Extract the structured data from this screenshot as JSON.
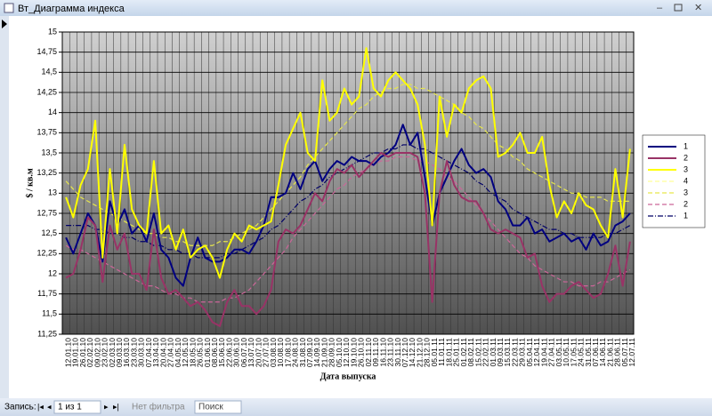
{
  "window": {
    "title": "Вт_Диаграмма индекса",
    "nav": {
      "label": "Запись:",
      "position": "1 из 1",
      "filter": "Нет фильтра",
      "search": "Поиск"
    }
  },
  "chart_data": {
    "type": "line",
    "y_label": "$ / кв.м",
    "x_label": "Дата выпуска",
    "grid": true,
    "ylim": [
      11.25,
      15
    ],
    "yticks": [
      {
        "value": 11.25,
        "label": "11,25"
      },
      {
        "value": 11.5,
        "label": "11,5"
      },
      {
        "value": 11.75,
        "label": "11,75"
      },
      12,
      {
        "value": 12.25,
        "label": "12,25"
      },
      {
        "value": 12.5,
        "label": "12,5"
      },
      {
        "value": 12.75,
        "label": "12,75"
      },
      13,
      {
        "value": 13.25,
        "label": "13,25"
      },
      {
        "value": 13.5,
        "label": "13,5"
      },
      {
        "value": 13.75,
        "label": "13,75"
      },
      14,
      {
        "value": 14.25,
        "label": "14,25"
      },
      {
        "value": 14.5,
        "label": "14,5"
      },
      {
        "value": 14.75,
        "label": "14,75"
      },
      15
    ],
    "categories": [
      "12.01.10",
      "19.01.10",
      "26.01.10",
      "02.02.10",
      "09.02.10",
      "23.02.10",
      "02.03.10",
      "09.03.10",
      "16.03.10",
      "23.03.10",
      "30.03.10",
      "07.04.10",
      "13.04.10",
      "20.04.10",
      "27.04.10",
      "04.05.10",
      "12.05.10",
      "18.05.10",
      "26.05.10",
      "01.06.10",
      "08.06.10",
      "15.06.10",
      "22.06.10",
      "30.06.10",
      "06.07.10",
      "13.07.10",
      "20.07.10",
      "27.07.10",
      "03.08.10",
      "10.08.10",
      "17.08.10",
      "24.08.10",
      "31.08.10",
      "07.09.10",
      "14.09.10",
      "21.09.10",
      "28.09.10",
      "05.10.10",
      "12.10.10",
      "19.10.10",
      "26.10.10",
      "02.11.10",
      "09.11.10",
      "16.11.10",
      "23.11.10",
      "30.11.10",
      "07.12.10",
      "14.12.10",
      "21.12.10",
      "28.12.10",
      "05.01.11",
      "11.01.11",
      "18.01.11",
      "25.01.11",
      "01.02.11",
      "08.02.11",
      "15.02.11",
      "22.02.11",
      "01.03.11",
      "09.03.11",
      "15.03.11",
      "22.03.11",
      "29.03.11",
      "05.04.11",
      "12.04.11",
      "19.04.11",
      "27.04.11",
      "03.05.11",
      "10.05.11",
      "17.05.11",
      "24.05.11",
      "31.05.11",
      "07.06.11",
      "14.06.11",
      "21.06.11",
      "28.06.11",
      "05.07.11",
      "12.07.11"
    ],
    "series": [
      {
        "name": "1",
        "color": "#000080",
        "style": "solid",
        "values": [
          12.45,
          12.25,
          12.5,
          12.75,
          12.6,
          12.15,
          12.9,
          12.6,
          12.8,
          12.5,
          12.6,
          12.4,
          12.75,
          12.3,
          12.2,
          11.95,
          11.85,
          12.2,
          12.45,
          12.2,
          12.15,
          12.15,
          12.2,
          12.3,
          12.3,
          12.25,
          12.4,
          12.6,
          12.95,
          12.95,
          13.0,
          13.25,
          13.05,
          13.3,
          13.4,
          13.15,
          13.3,
          13.4,
          13.35,
          13.45,
          13.4,
          13.4,
          13.35,
          13.45,
          13.5,
          13.6,
          13.85,
          13.6,
          13.75,
          13.2,
          12.6,
          13.0,
          13.2,
          13.4,
          13.55,
          13.35,
          13.25,
          13.3,
          13.2,
          12.9,
          12.8,
          12.6,
          12.6,
          12.7,
          12.5,
          12.55,
          12.4,
          12.45,
          12.5,
          12.4,
          12.45,
          12.3,
          12.5,
          12.35,
          12.4,
          12.6,
          12.65,
          12.75
        ]
      },
      {
        "name": "2",
        "color": "#993366",
        "style": "solid",
        "values": [
          11.95,
          12.0,
          12.3,
          12.7,
          12.6,
          11.9,
          12.6,
          12.3,
          12.5,
          12.0,
          12.0,
          11.8,
          12.55,
          11.95,
          11.75,
          11.8,
          11.7,
          11.6,
          11.65,
          11.55,
          11.4,
          11.35,
          11.65,
          11.8,
          11.6,
          11.6,
          11.5,
          11.6,
          11.8,
          12.4,
          12.55,
          12.5,
          12.6,
          12.8,
          13.0,
          12.9,
          13.15,
          13.3,
          13.25,
          13.35,
          13.2,
          13.3,
          13.4,
          13.5,
          13.45,
          13.5,
          13.5,
          13.5,
          13.45,
          13.0,
          11.65,
          13.0,
          13.4,
          13.1,
          12.95,
          12.9,
          12.9,
          12.75,
          12.55,
          12.5,
          12.55,
          12.5,
          12.45,
          12.2,
          12.25,
          11.85,
          11.65,
          11.75,
          11.75,
          11.85,
          11.9,
          11.8,
          11.7,
          11.75,
          12.0,
          12.35,
          11.85,
          12.4
        ]
      },
      {
        "name": "3",
        "color": "#ffff00",
        "style": "solid",
        "values": [
          12.95,
          12.7,
          13.1,
          13.3,
          13.9,
          12.2,
          13.3,
          12.5,
          13.6,
          12.8,
          12.6,
          12.5,
          13.4,
          12.5,
          12.6,
          12.3,
          12.55,
          12.2,
          12.3,
          12.35,
          12.2,
          11.95,
          12.3,
          12.5,
          12.4,
          12.6,
          12.55,
          12.6,
          12.65,
          13.1,
          13.6,
          13.8,
          14.0,
          13.5,
          13.4,
          14.4,
          13.9,
          14.0,
          14.3,
          14.1,
          14.2,
          14.8,
          14.3,
          14.2,
          14.4,
          14.5,
          14.4,
          14.3,
          14.1,
          13.6,
          12.6,
          14.2,
          13.7,
          14.1,
          14.0,
          14.3,
          14.4,
          14.45,
          14.3,
          13.45,
          13.5,
          13.6,
          13.75,
          13.5,
          13.5,
          13.7,
          13.1,
          12.7,
          12.9,
          12.75,
          13.0,
          12.85,
          12.8,
          12.6,
          12.45,
          13.3,
          12.7,
          13.55
        ]
      },
      {
        "name": "4",
        "color": "#ffff99",
        "style": "dash"
      },
      {
        "name": "3",
        "color": "#e6e64c",
        "style": "dash",
        "values": [
          13.15,
          13.05,
          12.95,
          12.9,
          12.85,
          12.8,
          12.75,
          12.7,
          12.65,
          12.6,
          12.55,
          12.5,
          12.5,
          12.45,
          12.45,
          12.4,
          12.4,
          12.35,
          12.35,
          12.35,
          12.35,
          12.4,
          12.4,
          12.45,
          12.5,
          12.55,
          12.6,
          12.7,
          12.8,
          12.9,
          13.0,
          13.1,
          13.2,
          13.35,
          13.45,
          13.55,
          13.65,
          13.75,
          13.85,
          13.95,
          14.05,
          14.1,
          14.2,
          14.25,
          14.3,
          14.3,
          14.35,
          14.35,
          14.3,
          14.3,
          14.25,
          14.2,
          14.15,
          14.1,
          14.0,
          13.95,
          13.85,
          13.8,
          13.7,
          13.6,
          13.55,
          13.45,
          13.4,
          13.3,
          13.25,
          13.2,
          13.15,
          13.1,
          13.05,
          13.0,
          13.0,
          12.95,
          12.95,
          12.95,
          12.9,
          12.9,
          12.9,
          12.9
        ]
      },
      {
        "name": "2",
        "color": "#cc6699",
        "style": "dash",
        "values": [
          12.35,
          12.3,
          12.3,
          12.25,
          12.2,
          12.15,
          12.1,
          12.05,
          12.0,
          11.95,
          11.9,
          11.85,
          11.85,
          11.8,
          11.75,
          11.75,
          11.7,
          11.7,
          11.65,
          11.65,
          11.65,
          11.65,
          11.7,
          11.7,
          11.75,
          11.8,
          11.9,
          12.0,
          12.1,
          12.2,
          12.3,
          12.45,
          12.55,
          12.65,
          12.75,
          12.85,
          12.95,
          13.05,
          13.1,
          13.2,
          13.25,
          13.3,
          13.35,
          13.4,
          13.4,
          13.45,
          13.45,
          13.45,
          13.4,
          13.4,
          13.35,
          13.3,
          13.2,
          13.15,
          13.05,
          12.95,
          12.85,
          12.75,
          12.65,
          12.55,
          12.45,
          12.35,
          12.25,
          12.2,
          12.1,
          12.05,
          12.0,
          11.95,
          11.9,
          11.9,
          11.85,
          11.85,
          11.85,
          11.9,
          11.9,
          11.95,
          12.0,
          12.05
        ]
      },
      {
        "name": "1",
        "color": "#000066",
        "style": "dashdot",
        "values": [
          12.6,
          12.6,
          12.6,
          12.6,
          12.55,
          12.55,
          12.5,
          12.5,
          12.45,
          12.45,
          12.4,
          12.4,
          12.35,
          12.35,
          12.3,
          12.3,
          12.25,
          12.25,
          12.2,
          12.2,
          12.2,
          12.2,
          12.25,
          12.25,
          12.3,
          12.35,
          12.4,
          12.45,
          12.55,
          12.6,
          12.7,
          12.8,
          12.9,
          12.95,
          13.05,
          13.1,
          13.2,
          13.25,
          13.3,
          13.35,
          13.4,
          13.45,
          13.5,
          13.5,
          13.55,
          13.55,
          13.6,
          13.6,
          13.55,
          13.55,
          13.5,
          13.45,
          13.4,
          13.35,
          13.3,
          13.25,
          13.15,
          13.1,
          13.0,
          12.95,
          12.9,
          12.8,
          12.75,
          12.7,
          12.65,
          12.6,
          12.55,
          12.55,
          12.5,
          12.5,
          12.45,
          12.45,
          12.45,
          12.45,
          12.5,
          12.5,
          12.55,
          12.6
        ]
      }
    ]
  }
}
